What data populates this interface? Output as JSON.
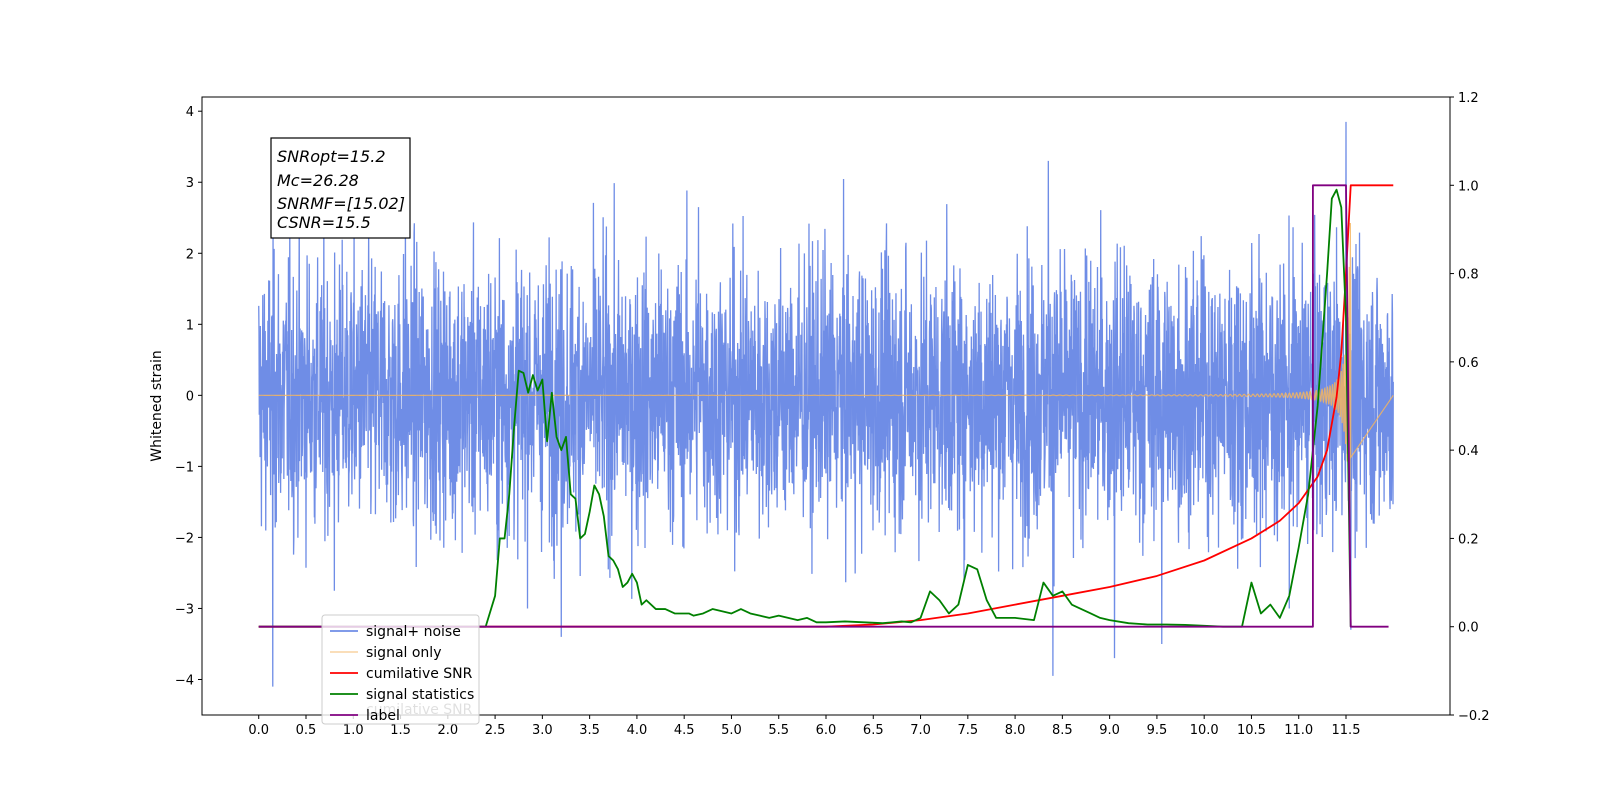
{
  "chart_data": {
    "type": "line",
    "title": "",
    "xlabel": "",
    "ylabel": "Whitened strain",
    "xlim": [
      -0.6,
      12.6
    ],
    "ylim": [
      -4.5,
      4.2
    ],
    "y2lim": [
      -0.2,
      1.2
    ],
    "x_ticks": [
      "0.0",
      "0.5",
      "1.0",
      "1.5",
      "2.0",
      "2.5",
      "3.0",
      "3.5",
      "4.0",
      "4.5",
      "5.0",
      "5.5",
      "6.0",
      "6.5",
      "7.0",
      "7.5",
      "8.0",
      "8.5",
      "9.0",
      "9.5",
      "10.0",
      "10.5",
      "11.0",
      "11.5"
    ],
    "y_ticks": [
      "4",
      "3",
      "2",
      "1",
      "0",
      "−1",
      "−2",
      "−3",
      "−4"
    ],
    "y2_ticks": [
      "1.2",
      "1.0",
      "0.8",
      "0.6",
      "0.4",
      "0.2",
      "0.0",
      "−0.2"
    ],
    "grid": false,
    "legend_position": "lower-left",
    "info_box": {
      "lines": [
        "SNRopt=15.2",
        "Mc=26.28",
        "SNRMF=[15.02]",
        "CSNR=15.5"
      ]
    },
    "series": [
      {
        "name": "signal+ noise",
        "color": "#6f8de6",
        "axis": "left",
        "kind": "noise",
        "envelope_std": 0.95,
        "x_range": [
          0.0,
          12.0
        ],
        "extreme_points": [
          [
            0.15,
            -4.1
          ],
          [
            0.8,
            -2.75
          ],
          [
            1.55,
            2.75
          ],
          [
            3.2,
            -3.4
          ],
          [
            4.65,
            2.65
          ],
          [
            8.35,
            3.3
          ],
          [
            8.4,
            -3.95
          ],
          [
            9.05,
            -3.7
          ],
          [
            9.55,
            -3.5
          ],
          [
            10.9,
            -3.0
          ],
          [
            11.5,
            3.85
          ],
          [
            11.55,
            -3.3
          ]
        ]
      },
      {
        "name": "signal only",
        "color": "#f5b55f",
        "axis": "left",
        "kind": "chirp",
        "x_range": [
          0.0,
          11.55
        ],
        "peak_amplitude": 3.2,
        "chirp_end": 11.55
      },
      {
        "name": "cumilative SNR",
        "color": "#ff0000",
        "axis": "right",
        "x": [
          0.0,
          6.0,
          6.5,
          7.0,
          7.5,
          8.0,
          8.5,
          9.0,
          9.5,
          10.0,
          10.5,
          10.8,
          11.0,
          11.2,
          11.3,
          11.4,
          11.45,
          11.5,
          11.55,
          11.6,
          11.7,
          11.8,
          11.9,
          12.0
        ],
        "y": [
          0.0,
          0.0,
          0.005,
          0.015,
          0.03,
          0.05,
          0.07,
          0.09,
          0.115,
          0.15,
          0.2,
          0.24,
          0.28,
          0.34,
          0.4,
          0.52,
          0.62,
          0.8,
          1.0,
          1.0,
          1.0,
          1.0,
          1.0,
          1.0
        ]
      },
      {
        "name": "signal statistics",
        "color": "#008000",
        "axis": "right",
        "x": [
          0.0,
          2.3,
          2.4,
          2.5,
          2.55,
          2.6,
          2.65,
          2.7,
          2.75,
          2.8,
          2.85,
          2.9,
          2.95,
          3.0,
          3.05,
          3.1,
          3.15,
          3.2,
          3.25,
          3.3,
          3.35,
          3.4,
          3.45,
          3.5,
          3.55,
          3.6,
          3.65,
          3.7,
          3.75,
          3.8,
          3.85,
          3.9,
          3.95,
          4.0,
          4.05,
          4.1,
          4.2,
          4.3,
          4.4,
          4.5,
          4.55,
          4.6,
          4.7,
          4.8,
          4.9,
          5.0,
          5.1,
          5.2,
          5.3,
          5.4,
          5.5,
          5.6,
          5.7,
          5.8,
          5.9,
          6.0,
          6.2,
          6.4,
          6.6,
          6.8,
          6.9,
          7.0,
          7.1,
          7.2,
          7.3,
          7.4,
          7.5,
          7.6,
          7.7,
          7.8,
          8.0,
          8.2,
          8.3,
          8.4,
          8.5,
          8.6,
          8.7,
          8.8,
          8.9,
          9.0,
          9.2,
          9.4,
          9.6,
          9.8,
          10.0,
          10.2,
          10.4,
          10.5,
          10.6,
          10.7,
          10.8,
          10.9,
          11.0,
          11.1,
          11.2,
          11.3,
          11.35,
          11.4,
          11.45,
          11.5,
          11.55
        ],
        "y": [
          0.0,
          0.0,
          0.0,
          0.07,
          0.2,
          0.2,
          0.3,
          0.45,
          0.58,
          0.575,
          0.53,
          0.57,
          0.535,
          0.56,
          0.42,
          0.53,
          0.43,
          0.4,
          0.43,
          0.3,
          0.29,
          0.2,
          0.21,
          0.26,
          0.32,
          0.3,
          0.25,
          0.16,
          0.15,
          0.13,
          0.09,
          0.1,
          0.12,
          0.1,
          0.05,
          0.06,
          0.04,
          0.04,
          0.03,
          0.03,
          0.03,
          0.025,
          0.03,
          0.04,
          0.035,
          0.03,
          0.04,
          0.03,
          0.025,
          0.02,
          0.025,
          0.02,
          0.015,
          0.02,
          0.01,
          0.01,
          0.012,
          0.01,
          0.008,
          0.012,
          0.01,
          0.02,
          0.08,
          0.06,
          0.03,
          0.05,
          0.14,
          0.13,
          0.06,
          0.02,
          0.02,
          0.015,
          0.1,
          0.07,
          0.08,
          0.05,
          0.04,
          0.03,
          0.02,
          0.015,
          0.008,
          0.005,
          0.005,
          0.004,
          0.002,
          0.0,
          0.0,
          0.1,
          0.03,
          0.05,
          0.02,
          0.07,
          0.18,
          0.3,
          0.5,
          0.8,
          0.97,
          0.99,
          0.95,
          0.7,
          0.0
        ]
      },
      {
        "name": "label",
        "color": "#800080",
        "axis": "right",
        "x": [
          0.0,
          11.15,
          11.15,
          11.5,
          11.55,
          11.95
        ],
        "y": [
          0.0,
          0.0,
          1.0,
          1.0,
          0.0,
          0.0
        ]
      }
    ],
    "legend_overlap_text": "cumilative SNR"
  }
}
